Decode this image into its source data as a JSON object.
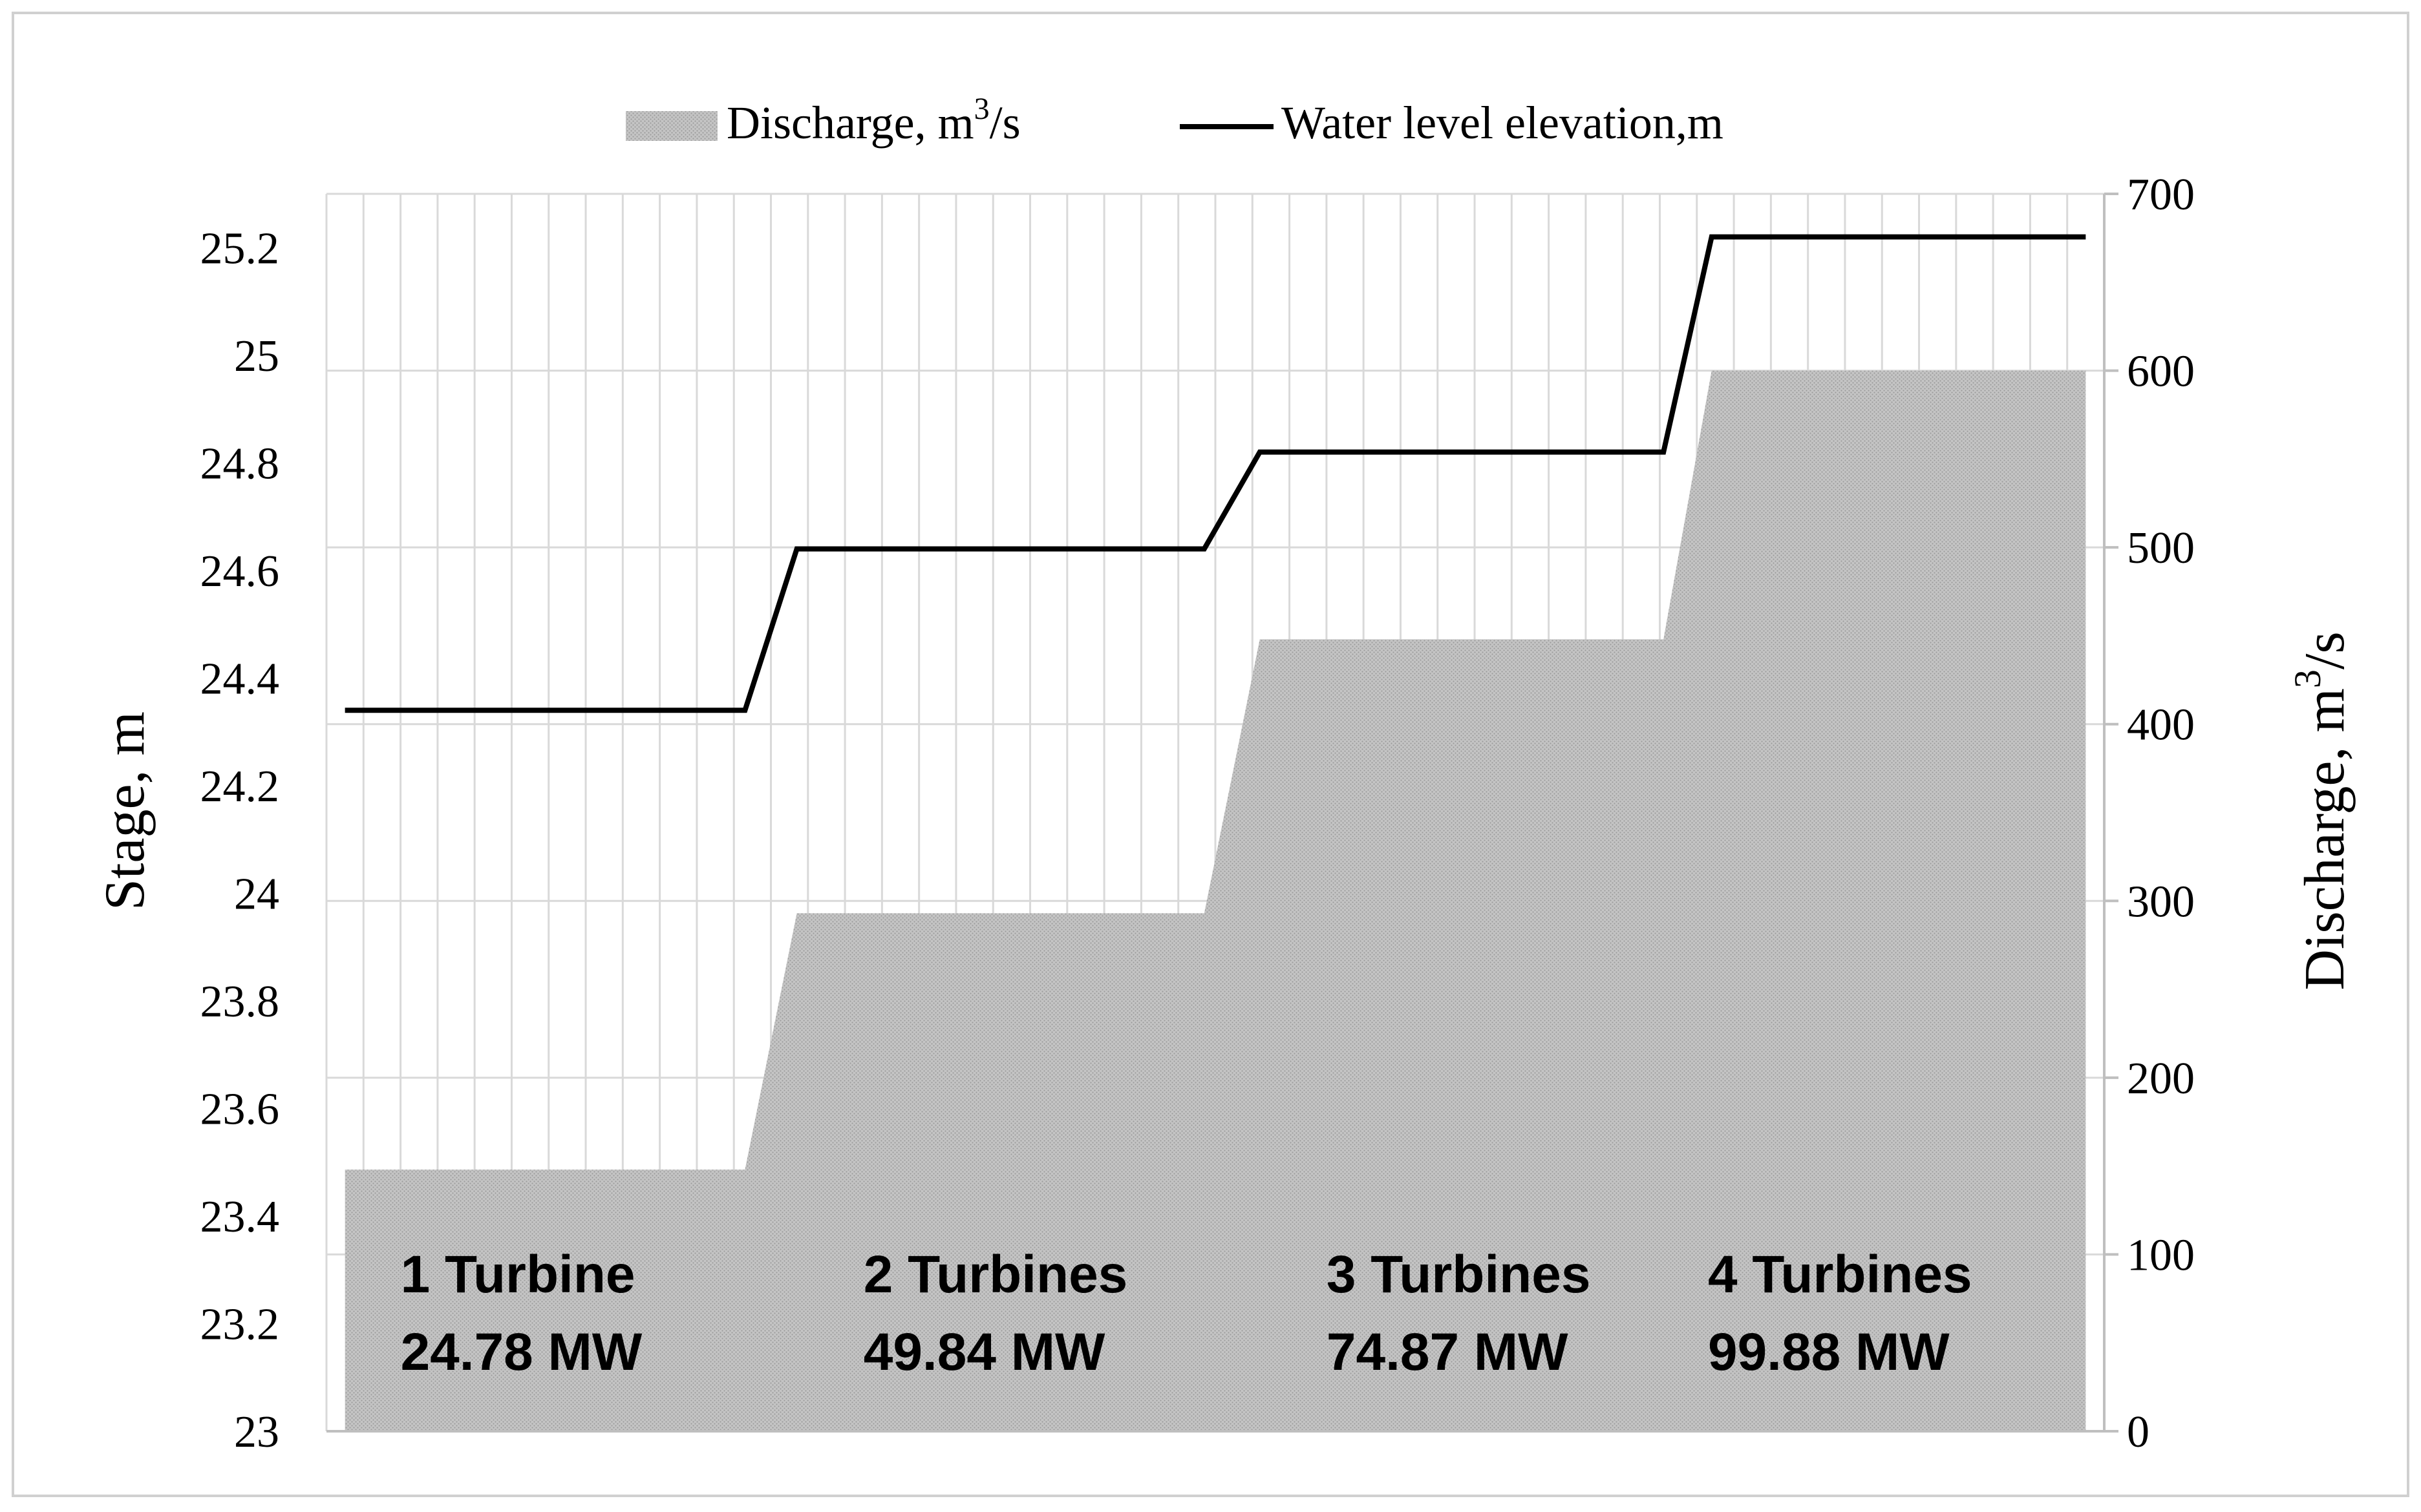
{
  "chart_data": {
    "type": "area",
    "legend": {
      "position": "top",
      "entries": [
        {
          "series": "discharge",
          "label_main": "Discharge, m",
          "label_sup": "3",
          "label_tail": "/s"
        },
        {
          "series": "stage",
          "label_main": "Water level elevation,m",
          "label_sup": "",
          "label_tail": ""
        }
      ]
    },
    "grid": true,
    "x": [
      0,
      1,
      2,
      3,
      4,
      5,
      6,
      7,
      8,
      9,
      10,
      11,
      12,
      13,
      14,
      15,
      16,
      17,
      18,
      19,
      20,
      21,
      22,
      23,
      24,
      25,
      26,
      27,
      28,
      29,
      30,
      31,
      32,
      33,
      34,
      35,
      36,
      37,
      38,
      39,
      40,
      41,
      42,
      43,
      44,
      45,
      46,
      47
    ],
    "xlim": [
      -0.5,
      47.5
    ],
    "y_left": {
      "label": "Stage,  m",
      "min": 23,
      "max": 25.3,
      "ticks": [
        23,
        23.2,
        23.4,
        23.6,
        23.8,
        24,
        24.2,
        24.4,
        24.6,
        24.8,
        25,
        25.2
      ],
      "tick_labels": [
        "23",
        "23.2",
        "23.4",
        "23.6",
        "23.8",
        "24",
        "24.2",
        "24.4",
        "24.6",
        "24.8",
        "25",
        "25.2"
      ]
    },
    "y_right": {
      "label_main": "Discharge,  m",
      "label_sup": "3",
      "label_tail": "/s",
      "min": 0,
      "max": 700,
      "ticks": [
        0,
        100,
        200,
        300,
        400,
        500,
        600,
        700
      ],
      "tick_labels": [
        "0",
        "100",
        "200",
        "300",
        "400",
        "500",
        "600",
        "700"
      ]
    },
    "series": [
      {
        "id": "discharge",
        "name": "Discharge, m3/s",
        "kind": "area",
        "axis": "right",
        "color": "#b8b8b8",
        "points": [
          [
            0,
            148
          ],
          [
            10.8,
            148
          ],
          [
            12.2,
            293
          ],
          [
            23.2,
            293
          ],
          [
            24.7,
            448
          ],
          [
            35.6,
            448
          ],
          [
            36.9,
            600
          ],
          [
            47,
            600
          ]
        ]
      },
      {
        "id": "stage",
        "name": "Water level elevation,m",
        "kind": "line",
        "axis": "left",
        "color": "#000000",
        "points": [
          [
            0,
            24.34
          ],
          [
            10.8,
            24.34
          ],
          [
            12.2,
            24.64
          ],
          [
            23.2,
            24.64
          ],
          [
            24.7,
            24.82
          ],
          [
            35.6,
            24.82
          ],
          [
            36.9,
            25.22
          ],
          [
            47,
            25.22
          ]
        ]
      }
    ],
    "annotations": [
      {
        "line1": "1 Turbine",
        "line2": "24.78 MW",
        "x": 1.5
      },
      {
        "line1": "2 Turbines",
        "line2": "49.84 MW",
        "x": 14.0
      },
      {
        "line1": "3 Turbines",
        "line2": "74.87 MW",
        "x": 26.5
      },
      {
        "line1": "4 Turbines",
        "line2": "99.88 MW",
        "x": 36.8
      }
    ]
  }
}
